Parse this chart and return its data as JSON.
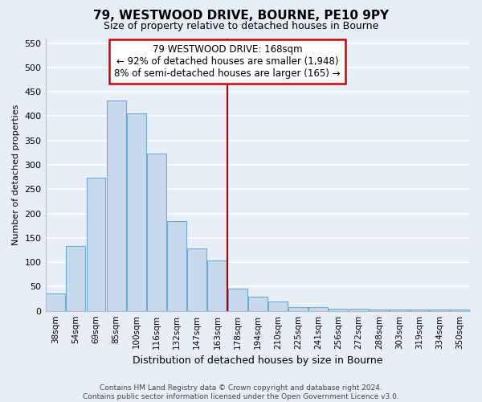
{
  "title": "79, WESTWOOD DRIVE, BOURNE, PE10 9PY",
  "subtitle": "Size of property relative to detached houses in Bourne",
  "xlabel": "Distribution of detached houses by size in Bourne",
  "ylabel": "Number of detached properties",
  "categories": [
    "38sqm",
    "54sqm",
    "69sqm",
    "85sqm",
    "100sqm",
    "116sqm",
    "132sqm",
    "147sqm",
    "163sqm",
    "178sqm",
    "194sqm",
    "210sqm",
    "225sqm",
    "241sqm",
    "256sqm",
    "272sqm",
    "288sqm",
    "303sqm",
    "319sqm",
    "334sqm",
    "350sqm"
  ],
  "values": [
    35,
    133,
    273,
    432,
    405,
    323,
    184,
    128,
    104,
    46,
    30,
    20,
    8,
    8,
    5,
    5,
    2,
    2,
    2,
    2,
    2
  ],
  "bar_color": "#c8d9ee",
  "bar_edge_color": "#6aaad4",
  "vline_x": 8.5,
  "vline_color": "#aa0000",
  "annotation_line1": "79 WESTWOOD DRIVE: 168sqm",
  "annotation_line2": "← 92% of detached houses are smaller (1,948)",
  "annotation_line3": "8% of semi-detached houses are larger (165) →",
  "box_facecolor": "#ffffff",
  "box_edgecolor": "#cc0000",
  "ylim": [
    0,
    560
  ],
  "yticks": [
    0,
    50,
    100,
    150,
    200,
    250,
    300,
    350,
    400,
    450,
    500,
    550
  ],
  "footer_line1": "Contains HM Land Registry data © Crown copyright and database right 2024.",
  "footer_line2": "Contains public sector information licensed under the Open Government Licence v3.0.",
  "bg_color": "#e8eef7",
  "plot_bg_color": "#e8eef7",
  "grid_color": "#ffffff",
  "title_fontsize": 11,
  "subtitle_fontsize": 9,
  "ylabel_fontsize": 8,
  "xlabel_fontsize": 9,
  "tick_fontsize": 8,
  "xtick_fontsize": 7.5,
  "footer_fontsize": 6.5,
  "ann_fontsize": 8.5
}
